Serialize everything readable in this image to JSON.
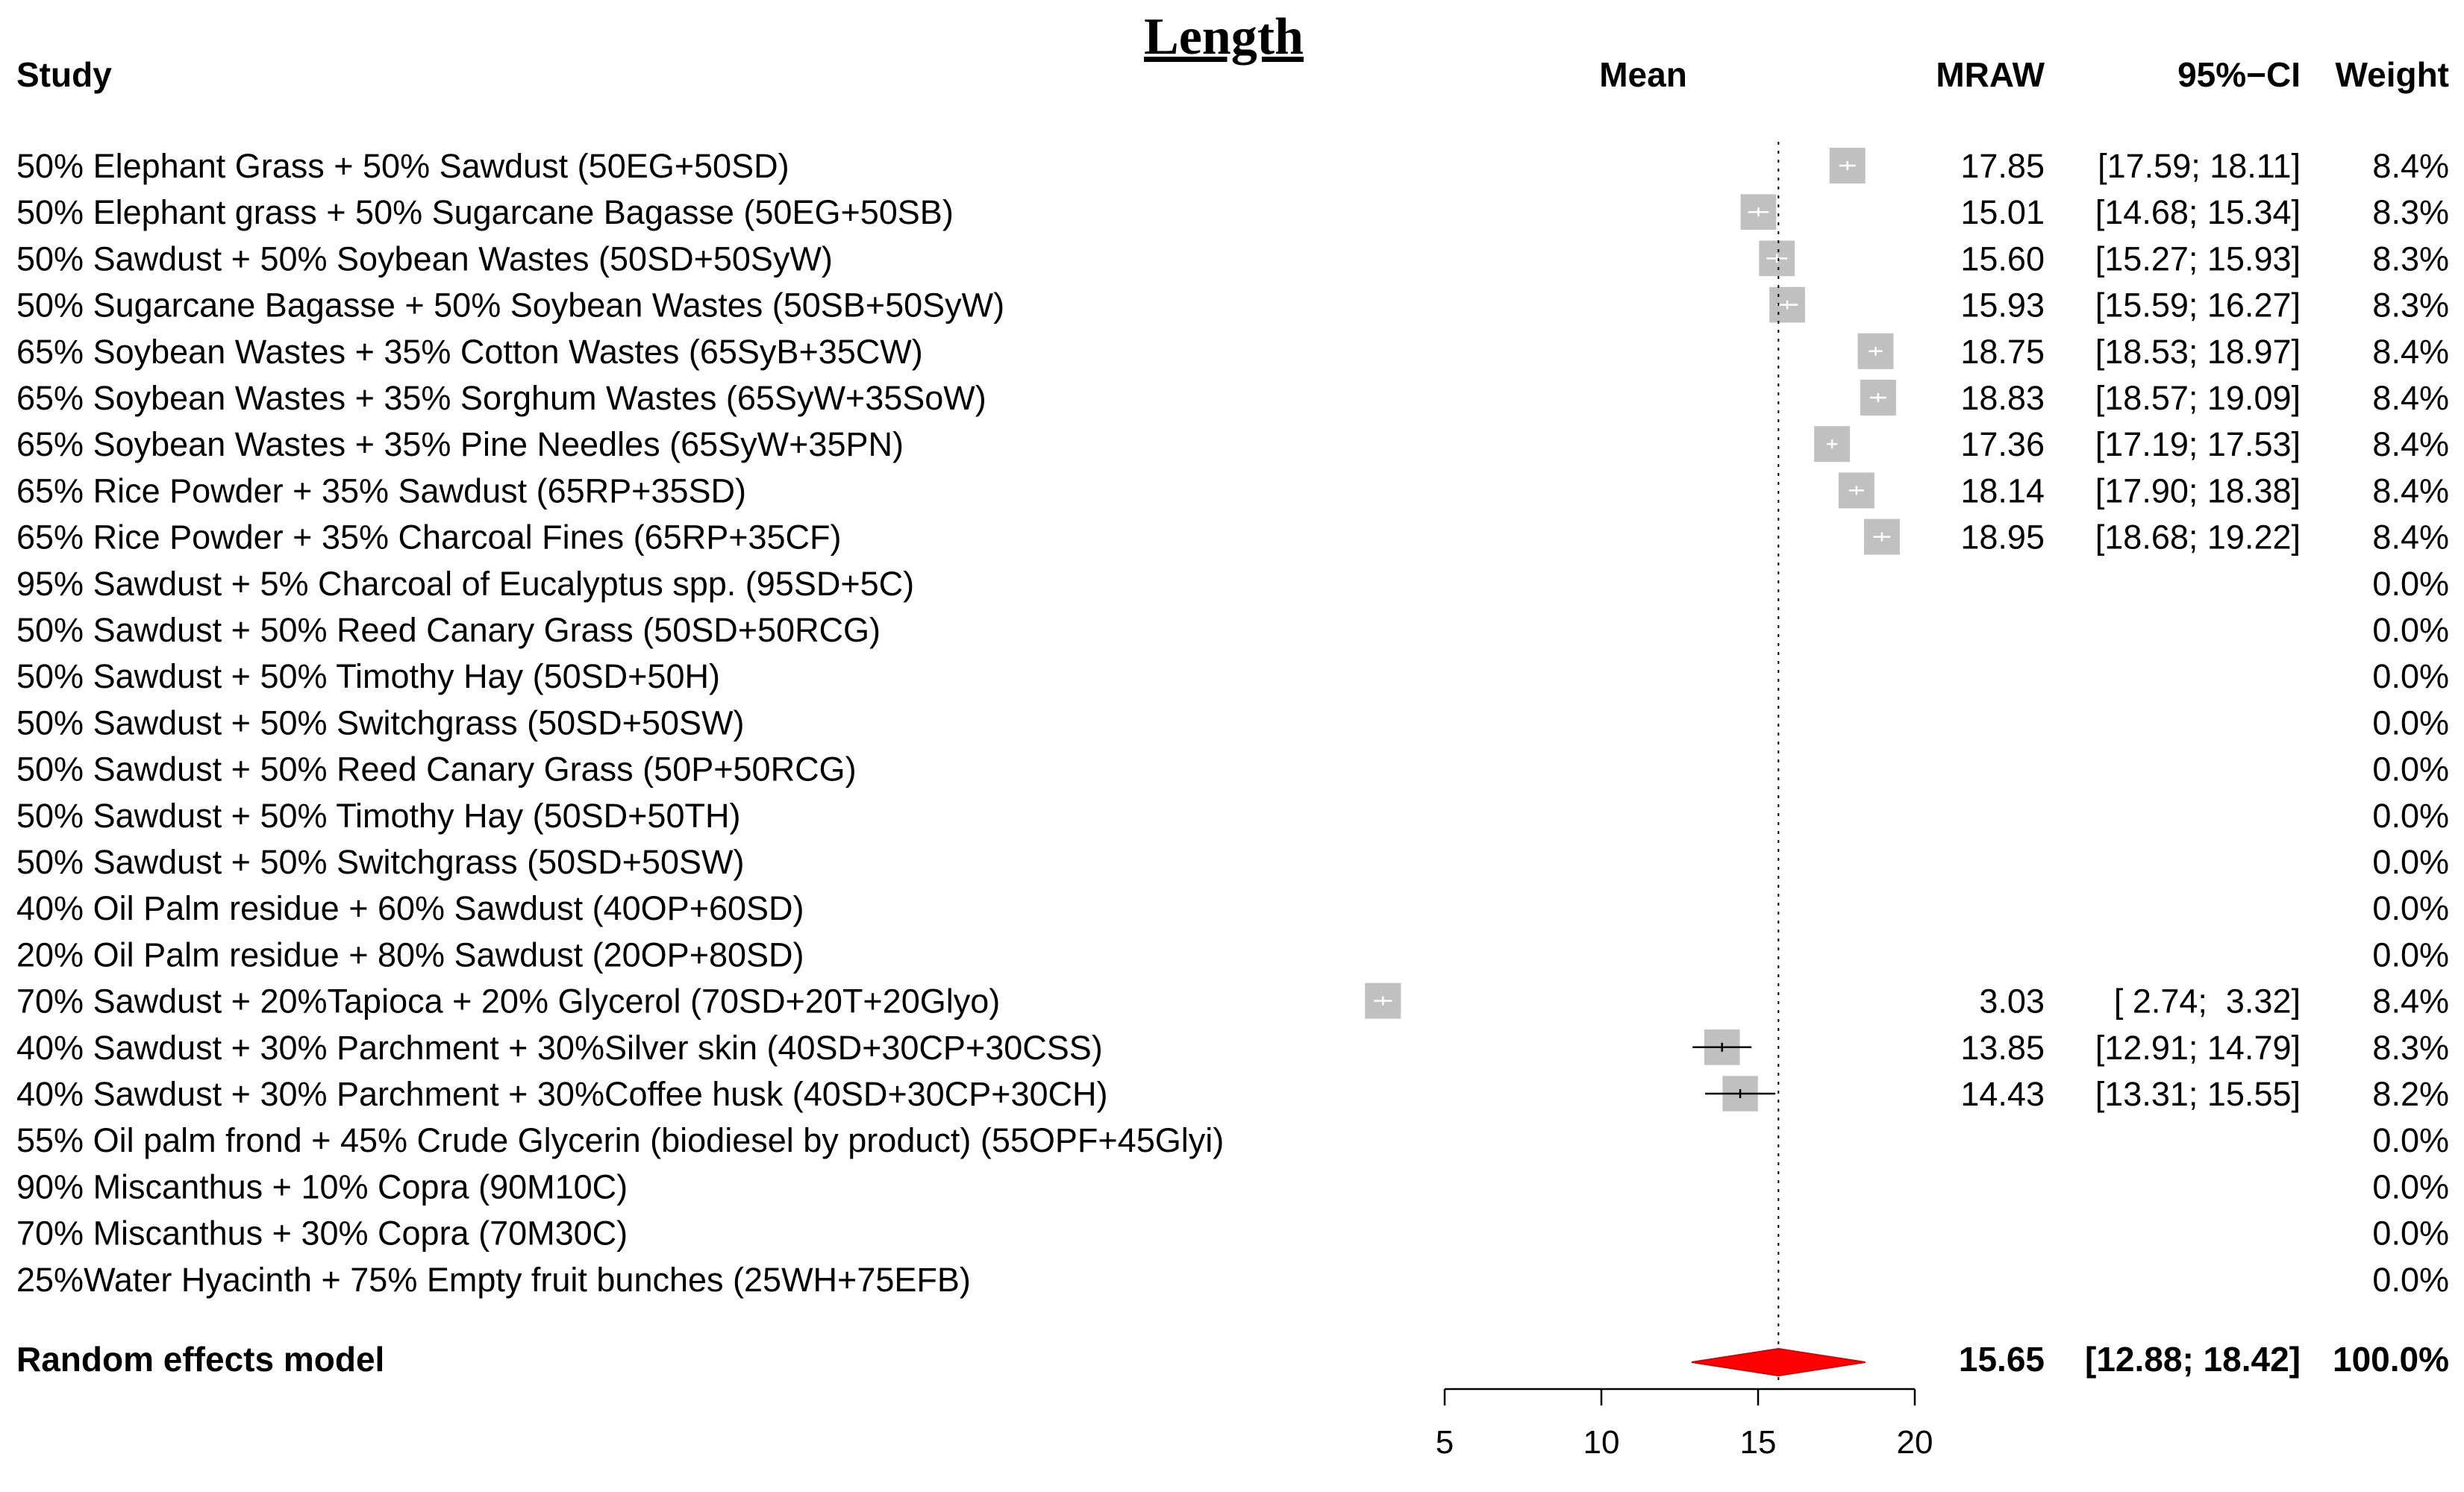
{
  "chart_data": {
    "type": "forest",
    "title": "Length",
    "headers": {
      "study": "Study",
      "mean": "Mean",
      "mraw": "MRAW",
      "ci": "95%−CI",
      "weight": "Weight"
    },
    "studies": [
      {
        "label": "50% Elephant Grass + 50% Sawdust (50EG+50SD)",
        "mraw": "17.85",
        "ci": "[17.59; 18.11]",
        "weight": "8.4%",
        "mean": 17.85,
        "lower": 17.59,
        "upper": 18.11,
        "w": 8.4
      },
      {
        "label": "50% Elephant grass + 50% Sugarcane Bagasse (50EG+50SB)",
        "mraw": "15.01",
        "ci": "[14.68; 15.34]",
        "weight": "8.3%",
        "mean": 15.01,
        "lower": 14.68,
        "upper": 15.34,
        "w": 8.3
      },
      {
        "label": "50% Sawdust + 50% Soybean Wastes (50SD+50SyW)",
        "mraw": "15.60",
        "ci": "[15.27; 15.93]",
        "weight": "8.3%",
        "mean": 15.6,
        "lower": 15.27,
        "upper": 15.93,
        "w": 8.3
      },
      {
        "label": "50% Sugarcane Bagasse + 50% Soybean Wastes (50SB+50SyW)",
        "mraw": "15.93",
        "ci": "[15.59; 16.27]",
        "weight": "8.3%",
        "mean": 15.93,
        "lower": 15.59,
        "upper": 16.27,
        "w": 8.3
      },
      {
        "label": "65% Soybean Wastes + 35% Cotton Wastes (65SyB+35CW)",
        "mraw": "18.75",
        "ci": "[18.53; 18.97]",
        "weight": "8.4%",
        "mean": 18.75,
        "lower": 18.53,
        "upper": 18.97,
        "w": 8.4
      },
      {
        "label": "65% Soybean Wastes + 35% Sorghum Wastes (65SyW+35SoW)",
        "mraw": "18.83",
        "ci": "[18.57; 19.09]",
        "weight": "8.4%",
        "mean": 18.83,
        "lower": 18.57,
        "upper": 19.09,
        "w": 8.4
      },
      {
        "label": "65% Soybean Wastes + 35% Pine Needles (65SyW+35PN)",
        "mraw": "17.36",
        "ci": "[17.19; 17.53]",
        "weight": "8.4%",
        "mean": 17.36,
        "lower": 17.19,
        "upper": 17.53,
        "w": 8.4
      },
      {
        "label": "65% Rice Powder + 35% Sawdust (65RP+35SD)",
        "mraw": "18.14",
        "ci": "[17.90; 18.38]",
        "weight": "8.4%",
        "mean": 18.14,
        "lower": 17.9,
        "upper": 18.38,
        "w": 8.4
      },
      {
        "label": "65% Rice Powder + 35% Charcoal Fines (65RP+35CF)",
        "mraw": "18.95",
        "ci": "[18.68; 19.22]",
        "weight": "8.4%",
        "mean": 18.95,
        "lower": 18.68,
        "upper": 19.22,
        "w": 8.4
      },
      {
        "label": "95% Sawdust + 5% Charcoal of Eucalyptus spp. (95SD+5C)",
        "mraw": "",
        "ci": "",
        "weight": "0.0%",
        "mean": null,
        "lower": null,
        "upper": null,
        "w": 0
      },
      {
        "label": "50% Sawdust + 50% Reed Canary Grass  (50SD+50RCG)",
        "mraw": "",
        "ci": "",
        "weight": "0.0%",
        "mean": null,
        "lower": null,
        "upper": null,
        "w": 0
      },
      {
        "label": "50% Sawdust + 50% Timothy Hay (50SD+50H)",
        "mraw": "",
        "ci": "",
        "weight": "0.0%",
        "mean": null,
        "lower": null,
        "upper": null,
        "w": 0
      },
      {
        "label": "50% Sawdust + 50% Switchgrass (50SD+50SW)",
        "mraw": "",
        "ci": "",
        "weight": "0.0%",
        "mean": null,
        "lower": null,
        "upper": null,
        "w": 0
      },
      {
        "label": "50% Sawdust + 50% Reed Canary Grass  (50P+50RCG)",
        "mraw": "",
        "ci": "",
        "weight": "0.0%",
        "mean": null,
        "lower": null,
        "upper": null,
        "w": 0
      },
      {
        "label": "50% Sawdust + 50% Timothy Hay (50SD+50TH)",
        "mraw": "",
        "ci": "",
        "weight": "0.0%",
        "mean": null,
        "lower": null,
        "upper": null,
        "w": 0
      },
      {
        "label": "50% Sawdust + 50% Switchgrass (50SD+50SW)",
        "mraw": "",
        "ci": "",
        "weight": "0.0%",
        "mean": null,
        "lower": null,
        "upper": null,
        "w": 0
      },
      {
        "label": "40% Oil Palm residue + 60% Sawdust (40OP+60SD)",
        "mraw": "",
        "ci": "",
        "weight": "0.0%",
        "mean": null,
        "lower": null,
        "upper": null,
        "w": 0
      },
      {
        "label": "20% Oil Palm residue + 80% Sawdust (20OP+80SD)",
        "mraw": "",
        "ci": "",
        "weight": "0.0%",
        "mean": null,
        "lower": null,
        "upper": null,
        "w": 0
      },
      {
        "label": "70% Sawdust + 20%Tapioca + 20% Glycerol (70SD+20T+20Glyo)",
        "mraw": "3.03",
        "ci": "[ 2.74;  3.32]",
        "weight": "8.4%",
        "mean": 3.03,
        "lower": 2.74,
        "upper": 3.32,
        "w": 8.4
      },
      {
        "label": "40% Sawdust + 30% Parchment + 30%Silver skin (40SD+30CP+30CSS)",
        "mraw": "13.85",
        "ci": "[12.91; 14.79]",
        "weight": "8.3%",
        "mean": 13.85,
        "lower": 12.91,
        "upper": 14.79,
        "w": 8.3
      },
      {
        "label": "40% Sawdust + 30% Parchment + 30%Coffee husk (40SD+30CP+30CH)",
        "mraw": "14.43",
        "ci": "[13.31; 15.55]",
        "weight": "8.2%",
        "mean": 14.43,
        "lower": 13.31,
        "upper": 15.55,
        "w": 8.2
      },
      {
        "label": "55% Oil palm frond + 45% Crude Glycerin (biodiesel by product) (55OPF+45Glyi)",
        "mraw": "",
        "ci": "",
        "weight": "0.0%",
        "mean": null,
        "lower": null,
        "upper": null,
        "w": 0
      },
      {
        "label": "90% Miscanthus + 10% Copra (90M10C)",
        "mraw": "",
        "ci": "",
        "weight": "0.0%",
        "mean": null,
        "lower": null,
        "upper": null,
        "w": 0
      },
      {
        "label": "70% Miscanthus + 30% Copra (70M30C)",
        "mraw": "",
        "ci": "",
        "weight": "0.0%",
        "mean": null,
        "lower": null,
        "upper": null,
        "w": 0
      },
      {
        "label": "25%Water Hyacinth + 75% Empty fruit bunches (25WH+75EFB)",
        "mraw": "",
        "ci": "",
        "weight": "0.0%",
        "mean": null,
        "lower": null,
        "upper": null,
        "w": 0
      }
    ],
    "pooled": {
      "label": "Random effects model",
      "mraw": "15.65",
      "ci": "[12.88; 18.42]",
      "weight": "100.0%",
      "mean": 15.65,
      "lower": 12.88,
      "upper": 18.42
    },
    "x_axis": {
      "range": [
        5,
        20
      ],
      "ticks": [
        5,
        10,
        15,
        20
      ],
      "tick_labels": [
        "5",
        "10",
        "15",
        "20"
      ]
    },
    "reference_line": 15.65,
    "colors": {
      "box": "#c0c0c0",
      "diamond": "#ff0000",
      "line": "#000000"
    }
  }
}
